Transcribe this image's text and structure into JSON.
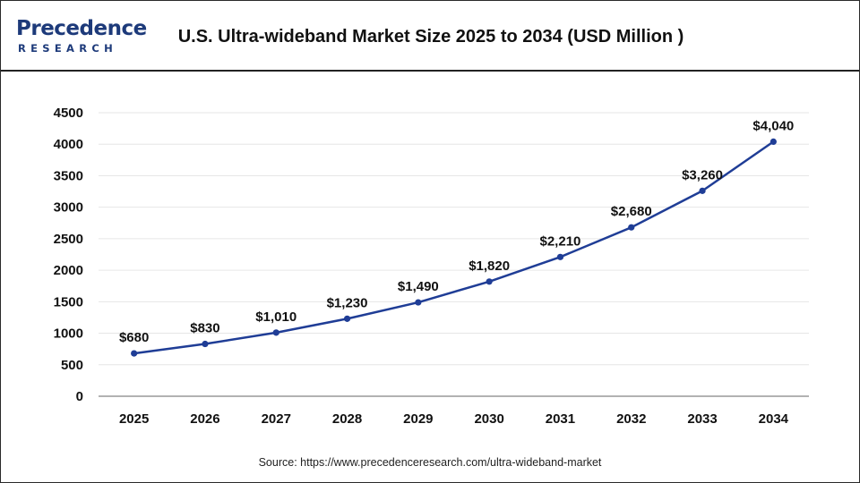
{
  "header": {
    "logo_text": "Precedence",
    "logo_sub": "RESEARCH",
    "title": "U.S. Ultra-wideband Market Size 2025 to 2034 (USD Million )"
  },
  "source": "Source: https://www.precedenceresearch.com/ultra-wideband-market",
  "colors": {
    "line": "#1f3d96",
    "marker": "#1f3d96",
    "grid": "#e6e6e6",
    "axis": "#999999"
  },
  "chart_data": {
    "type": "line",
    "title": "U.S. Ultra-wideband Market Size 2025 to 2034 (USD Million )",
    "xlabel": "",
    "ylabel": "",
    "categories": [
      "2025",
      "2026",
      "2027",
      "2028",
      "2029",
      "2030",
      "2031",
      "2032",
      "2033",
      "2034"
    ],
    "series": [
      {
        "values": [
          680,
          830,
          1010,
          1230,
          1490,
          1820,
          2210,
          2680,
          3260,
          4040
        ],
        "labels": [
          "$680",
          "$830",
          "$1,010",
          "$1,230",
          "$1,490",
          "$1,820",
          "$2,210",
          "$2,680",
          "$3,260",
          "$4,040"
        ]
      }
    ],
    "ylim": [
      0,
      4500
    ],
    "yticks": [
      "0",
      "500",
      "1000",
      "1500",
      "2000",
      "2500",
      "3000",
      "3500",
      "4000",
      "4500"
    ],
    "grid": true,
    "legend": "none"
  }
}
